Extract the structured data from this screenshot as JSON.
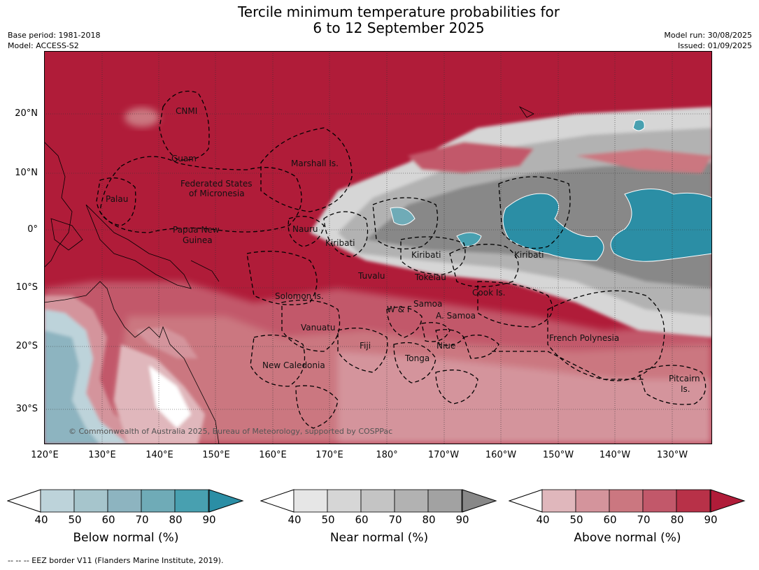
{
  "title": {
    "line1": "Tercile minimum temperature probabilities for",
    "line2": "6 to 12 September 2025"
  },
  "meta_left": {
    "base_period": "Base period: 1981-2018",
    "model": "Model: ACCESS-S2"
  },
  "meta_right": {
    "model_run": "Model run: 30/08/2025",
    "issued": "Issued: 01/09/2025"
  },
  "lat_labels": [
    "20°N",
    "10°N",
    "0°",
    "10°S",
    "20°S",
    "30°S"
  ],
  "lon_labels": [
    "120°E",
    "130°E",
    "140°E",
    "150°E",
    "160°E",
    "170°E",
    "180°",
    "170°W",
    "160°W",
    "150°W",
    "140°W",
    "130°W"
  ],
  "regions": {
    "cnmi": "CNMI",
    "guam": "Guam",
    "marshall": "Marshall Is.",
    "fsm_1": "Federated States",
    "fsm_2": "of Micronesia",
    "palau": "Palau",
    "png_1": "Papua New",
    "png_2": "Guinea",
    "nauru": "Nauru",
    "kiribati_w": "Kiribati",
    "kiribati_c": "Kiribati",
    "kiribati_e": "Kiribati",
    "tuvalu": "Tuvalu",
    "tokelau": "Tokelau",
    "solomon": "Solomon Is.",
    "cook": "Cook Is.",
    "wf": "W & F",
    "samoa": "Samoa",
    "asamoa": "A. Samoa",
    "vanuatu": "Vanuatu",
    "fiji": "Fiji",
    "niue": "Niue",
    "tonga": "Tonga",
    "frpoly": "French Polynesia",
    "newcal": "New Caledonia",
    "pitcairn_1": "Pitcairn",
    "pitcairn_2": "Is."
  },
  "copyright": "© Commonwealth of Australia 2025, Bureau of Meteorology, supported by COSPPac",
  "colorbars": [
    {
      "label": "Below normal (%)",
      "ticks": [
        "40",
        "50",
        "60",
        "70",
        "80",
        "90"
      ],
      "colors": [
        "#bdd3da",
        "#a6c5cc",
        "#8db4c0",
        "#6fabb7",
        "#48a0b0",
        "#2b8ea5"
      ]
    },
    {
      "label": "Near normal (%)",
      "ticks": [
        "40",
        "50",
        "60",
        "70",
        "80",
        "90"
      ],
      "colors": [
        "#e6e6e6",
        "#d6d6d6",
        "#c4c4c4",
        "#b2b2b2",
        "#a2a2a2",
        "#888888"
      ]
    },
    {
      "label": "Above normal (%)",
      "ticks": [
        "40",
        "50",
        "60",
        "70",
        "80",
        "90"
      ],
      "colors": [
        "#e0b7bc",
        "#d4949c",
        "#cb7780",
        "#c2586a",
        "#b83148",
        "#b01c39"
      ]
    }
  ],
  "footnote": "--  --  -- EEZ border V11 (Flanders Marine Institute, 2019).",
  "colors": {
    "above_strong": "#b01c39",
    "near_strong": "#888888",
    "below_strong": "#2b8ea5"
  }
}
